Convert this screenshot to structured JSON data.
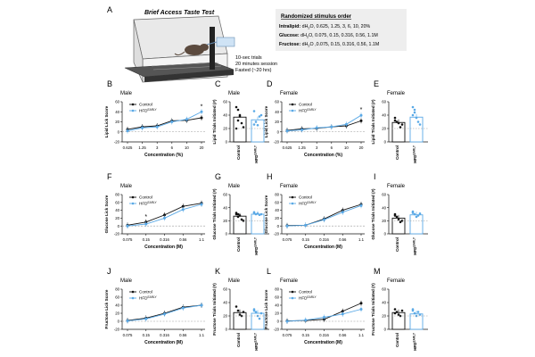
{
  "figure": {
    "panel_letters": [
      "A",
      "B",
      "C",
      "D",
      "E",
      "F",
      "G",
      "H",
      "I",
      "J",
      "K",
      "L",
      "M"
    ],
    "apparatus": {
      "title": "Brief Access Taste Test",
      "notes": [
        "10-sec trials",
        "20 minutes session",
        "Fasted (~20 hrs)"
      ]
    },
    "stimulus_box": {
      "heading": "Randomized stimulus order",
      "rows": [
        {
          "name": "Intralipid:",
          "pre": "dH",
          "sub": "2",
          "post": "O, 0.625, 1.25, 3, 6, 10, 20%"
        },
        {
          "name": "Glucose:",
          "pre": "dH",
          "sub": "2",
          "post": "O, 0.075, 0.15, 0.316, 0.56, 1.1M"
        },
        {
          "name": "Fructose:",
          "pre": "dH",
          "sub": "2",
          "post": "O ,0.075, 0.15, 0.316, 0.56, 1.1M"
        }
      ]
    },
    "legend": {
      "control": "Control",
      "hfd_main": "HFD",
      "hfd_sup": "EARLY"
    },
    "colors": {
      "control": "#111111",
      "hfd": "#5aa9e6",
      "bar_hfd_edge": "#5aa9e6"
    }
  },
  "chart_data": [
    {
      "panel": "B",
      "type": "line",
      "sex": "Male",
      "title": "Male",
      "ylabel": "Lipid Lick Score",
      "xlabel": "Concentration (%)",
      "categories": [
        "0.625",
        "1.25",
        "3",
        "6",
        "10",
        "20"
      ],
      "ylim": [
        -20,
        60
      ],
      "yticks": [
        -20,
        0,
        20,
        40,
        60
      ],
      "series": [
        {
          "name": "Control",
          "values": [
            5,
            10,
            12,
            22,
            23,
            28
          ]
        },
        {
          "name": "HFD EARLY",
          "values": [
            2,
            8,
            10,
            20,
            25,
            40
          ]
        }
      ],
      "annotations": [
        {
          "category": "20",
          "text": "*"
        }
      ]
    },
    {
      "panel": "C",
      "type": "bar",
      "sex": "Male",
      "title": "Male",
      "ylabel": "Lipid Trials Initiated (#)",
      "categories": [
        "Control",
        "HFD EARLY"
      ],
      "values": [
        37,
        33
      ],
      "ylim": [
        0,
        60
      ],
      "yticks": [
        0,
        20,
        40,
        60
      ],
      "points": [
        [
          52,
          48,
          40,
          28,
          22,
          20,
          32,
          38
        ],
        [
          46,
          30,
          25,
          38,
          40,
          26
        ]
      ]
    },
    {
      "panel": "D",
      "type": "line",
      "sex": "Female",
      "title": "Female",
      "ylabel": "Lipid Lick Score",
      "xlabel": "Concentration (%)",
      "categories": [
        "0.625",
        "1.25",
        "3",
        "6",
        "10",
        "20"
      ],
      "ylim": [
        -20,
        60
      ],
      "yticks": [
        -20,
        0,
        20,
        40,
        60
      ],
      "series": [
        {
          "name": "Control",
          "values": [
            3,
            6,
            7,
            10,
            12,
            22
          ]
        },
        {
          "name": "HFD EARLY",
          "values": [
            2,
            4,
            8,
            10,
            15,
            33
          ]
        }
      ],
      "annotations": [
        {
          "category": "20",
          "text": "*"
        }
      ]
    },
    {
      "panel": "E",
      "type": "bar",
      "sex": "Female",
      "title": "Female",
      "ylabel": "Lipid Trials Initiated (#)",
      "categories": [
        "Control",
        "HFD EARLY"
      ],
      "values": [
        29,
        37
      ],
      "ylim": [
        0,
        60
      ],
      "yticks": [
        0,
        20,
        40,
        60
      ],
      "points": [
        [
          36,
          30,
          28,
          22,
          26,
          32
        ],
        [
          52,
          44,
          36,
          30,
          26,
          40,
          48
        ]
      ]
    },
    {
      "panel": "F",
      "type": "line",
      "sex": "Male",
      "title": "Male",
      "ylabel": "Glucose Lick Score",
      "xlabel": "Concentration (M)",
      "categories": [
        "0.075",
        "0.15",
        "0.316",
        "0.56",
        "1.1"
      ],
      "ylim": [
        -20,
        80
      ],
      "yticks": [
        -20,
        0,
        20,
        40,
        60,
        80
      ],
      "series": [
        {
          "name": "Control",
          "values": [
            2,
            10,
            28,
            50,
            58
          ]
        },
        {
          "name": "HFD EARLY",
          "values": [
            0,
            5,
            20,
            42,
            55
          ]
        }
      ],
      "annotations": [
        {
          "category": "0.15",
          "text": "*"
        }
      ]
    },
    {
      "panel": "G",
      "type": "bar",
      "sex": "Male",
      "title": "Male",
      "ylabel": "Glucose Trials Initiated (#)",
      "categories": [
        "Control",
        "HFD EARLY"
      ],
      "values": [
        27,
        30
      ],
      "ylim": [
        0,
        60
      ],
      "yticks": [
        0,
        20,
        40,
        60
      ],
      "points": [
        [
          32,
          30,
          28,
          22,
          20,
          30,
          26
        ],
        [
          32,
          30,
          31,
          29,
          30,
          33
        ]
      ]
    },
    {
      "panel": "H",
      "type": "line",
      "sex": "Female",
      "title": "Female",
      "ylabel": "Glucose Lick Score",
      "xlabel": "Concentration (M)",
      "categories": [
        "0.075",
        "0.15",
        "0.316",
        "0.56",
        "1.1"
      ],
      "ylim": [
        -20,
        80
      ],
      "yticks": [
        -20,
        0,
        20,
        40,
        60,
        80
      ],
      "series": [
        {
          "name": "Control",
          "values": [
            1,
            2,
            18,
            40,
            55
          ]
        },
        {
          "name": "HFD EARLY",
          "values": [
            0,
            2,
            16,
            35,
            52
          ]
        }
      ],
      "annotations": []
    },
    {
      "panel": "I",
      "type": "bar",
      "sex": "Female",
      "title": "Female",
      "ylabel": "Glucose Trials Initiated (#)",
      "categories": [
        "Control",
        "HFD EARLY"
      ],
      "values": [
        24,
        29
      ],
      "ylim": [
        0,
        60
      ],
      "yticks": [
        0,
        20,
        40,
        60
      ],
      "points": [
        [
          30,
          26,
          22,
          18,
          20,
          28
        ],
        [
          34,
          30,
          26,
          28,
          31,
          32
        ]
      ]
    },
    {
      "panel": "J",
      "type": "line",
      "sex": "Male",
      "title": "Male",
      "ylabel": "Fructose Lick Score",
      "xlabel": "Concentration (M)",
      "categories": [
        "0.075",
        "0.15",
        "0.316",
        "0.56",
        "1.1"
      ],
      "ylim": [
        -20,
        80
      ],
      "yticks": [
        -20,
        0,
        20,
        40,
        60,
        80
      ],
      "series": [
        {
          "name": "Control",
          "values": [
            2,
            8,
            20,
            35,
            40
          ]
        },
        {
          "name": "HFD EARLY",
          "values": [
            1,
            6,
            18,
            33,
            40
          ]
        }
      ],
      "annotations": []
    },
    {
      "panel": "K",
      "type": "bar",
      "sex": "Male",
      "title": "Male",
      "ylabel": "Fructose Trials Initiated (#)",
      "categories": [
        "Control",
        "HFD EARLY"
      ],
      "values": [
        25,
        24
      ],
      "ylim": [
        0,
        60
      ],
      "yticks": [
        0,
        20,
        40,
        60
      ],
      "points": [
        [
          34,
          28,
          22,
          20,
          26
        ],
        [
          30,
          26,
          20,
          16,
          24,
          28
        ]
      ]
    },
    {
      "panel": "L",
      "type": "line",
      "sex": "Female",
      "title": "Female",
      "ylabel": "Fructose Lick Score",
      "xlabel": "Concentration (M)",
      "categories": [
        "0.075",
        "0.15",
        "0.316",
        "0.56",
        "1.1"
      ],
      "ylim": [
        -20,
        80
      ],
      "yticks": [
        -20,
        0,
        20,
        40,
        60,
        80
      ],
      "series": [
        {
          "name": "Control",
          "values": [
            1,
            2,
            5,
            25,
            45
          ]
        },
        {
          "name": "HFD EARLY",
          "values": [
            0,
            3,
            10,
            18,
            30
          ]
        }
      ],
      "annotations": []
    },
    {
      "panel": "M",
      "type": "bar",
      "sex": "Female",
      "title": "Female",
      "ylabel": "Fructose Trials Initiated (#)",
      "categories": [
        "Control",
        "HFD EARLY"
      ],
      "values": [
        25,
        23
      ],
      "ylim": [
        0,
        60
      ],
      "yticks": [
        0,
        20,
        40,
        60
      ],
      "points": [
        [
          30,
          26,
          22,
          20,
          28,
          24
        ],
        [
          28,
          24,
          20,
          26,
          22,
          30
        ]
      ]
    }
  ]
}
